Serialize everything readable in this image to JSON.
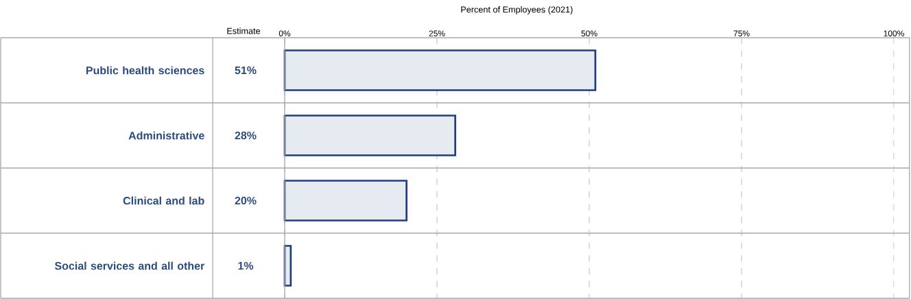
{
  "chart_data": {
    "type": "bar",
    "orientation": "horizontal",
    "xlabel": "Percent of Employees (2021)",
    "categories": [
      "Public health sciences",
      "Administrative",
      "Clinical and lab",
      "Social services and all other"
    ],
    "values": [
      51,
      28,
      20,
      1
    ],
    "value_labels": [
      "51%",
      "28%",
      "20%",
      "1%"
    ],
    "color": "#e6eaf1",
    "xlim": [
      0,
      100
    ],
    "xticks": [
      {
        "value": 0,
        "label": "0%"
      },
      {
        "value": 25,
        "label": "25%"
      },
      {
        "value": 50,
        "label": "50%"
      },
      {
        "value": 75,
        "label": "75%"
      },
      {
        "value": 100,
        "label": "100%"
      }
    ],
    "grid": "x",
    "annotations": [
      "Estimate"
    ]
  }
}
